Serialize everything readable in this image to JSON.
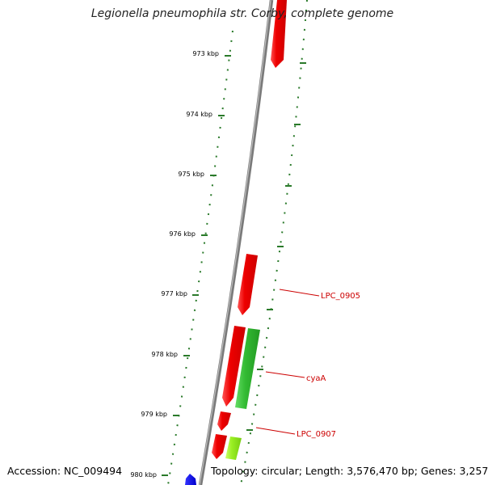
{
  "title": "Legionella pneumophila str. Corby, complete genome",
  "footer": {
    "accession": "Accession: NC_009494",
    "summary": "Topology: circular; Length: 3,576,470 bp; Genes: 3,257"
  },
  "axis": {
    "ticks": [
      "973 kbp",
      "974 kbp",
      "975 kbp",
      "976 kbp",
      "977 kbp",
      "978 kbp",
      "979 kbp",
      "980 kbp"
    ]
  },
  "colors": {
    "forward_cds": "#ee0000",
    "reverse_cds_dark": "#22bb22",
    "reverse_cds_light": "#99ee22",
    "rna": "#0000ee",
    "backbone": "#888888",
    "tick": "#2a7a2a",
    "label": "#cc0000"
  },
  "gene_labels": [
    "LPC_0905",
    "cyaA",
    "LPC_0907"
  ]
}
